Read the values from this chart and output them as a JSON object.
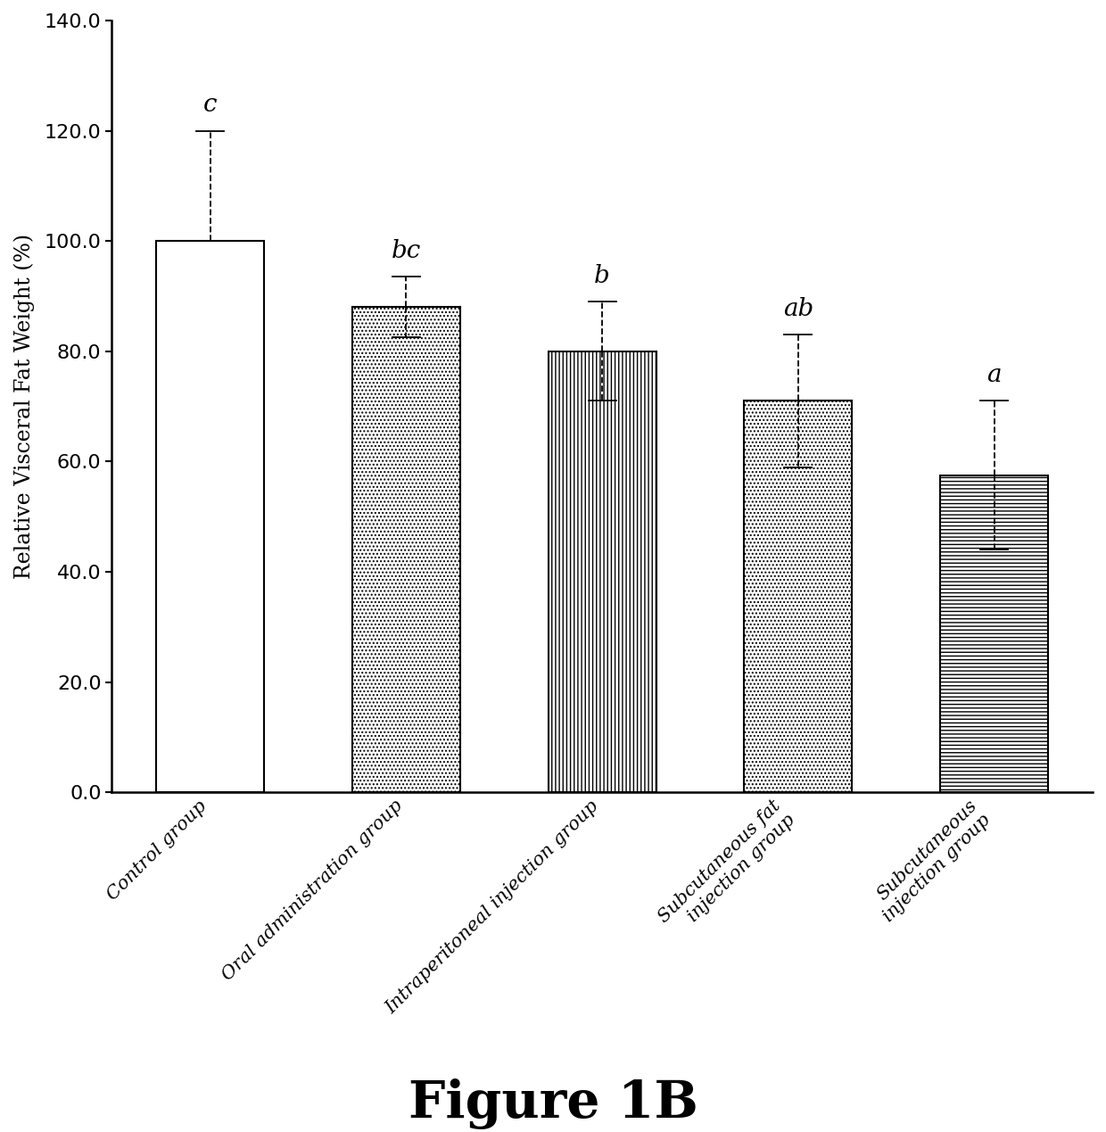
{
  "categories": [
    "Control group",
    "Oral administration group",
    "Intraperitoneal injection group",
    "Subcutaneous fat\ninjection group",
    "Subcutaneous\ninjection group"
  ],
  "values": [
    100.0,
    88.0,
    80.0,
    71.0,
    57.5
  ],
  "errors_upper": [
    20.0,
    5.5,
    9.0,
    12.0,
    13.5
  ],
  "errors_lower": [
    0.0,
    5.5,
    9.0,
    12.0,
    13.5
  ],
  "significance": [
    "c",
    "bc",
    "b",
    "ab",
    "a"
  ],
  "ylabel": "Relative Visceral Fat Weight (%)",
  "ylim": [
    0,
    140
  ],
  "yticks": [
    0.0,
    20.0,
    40.0,
    60.0,
    80.0,
    100.0,
    120.0,
    140.0
  ],
  "title": "Figure 1B",
  "bar_width": 0.55,
  "hatch_patterns": [
    "",
    "....",
    "||||",
    "....",
    "----"
  ],
  "bar_edge_color": "#000000",
  "figure_bg": "#ffffff",
  "bar_linewidth": 1.5,
  "spine_linewidth": 1.8,
  "ylabel_fontsize": 17,
  "tick_fontsize": 16,
  "sig_fontsize": 20,
  "title_fontsize": 42,
  "xtick_fontsize": 15
}
